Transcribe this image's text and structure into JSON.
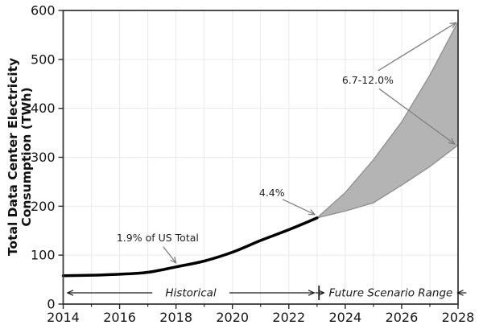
{
  "figure": {
    "ylabel_line1": "Total Data Center Electricity",
    "ylabel_line2": "Consumption (TWh)"
  },
  "chart_data": {
    "type": "line",
    "title": "",
    "xlabel": "",
    "ylabel": "Total Data Center Electricity Consumption (TWh)",
    "xlim": [
      2014,
      2028
    ],
    "ylim": [
      0,
      600
    ],
    "x_major_ticks": [
      2014,
      2016,
      2018,
      2020,
      2022,
      2024,
      2026,
      2028
    ],
    "x_minor_ticks": [
      2015,
      2017,
      2019,
      2021,
      2023,
      2025,
      2027
    ],
    "y_ticks": [
      0,
      100,
      200,
      300,
      400,
      500,
      600
    ],
    "grid": {
      "vertical_every_year": true,
      "horizontal_every": 100
    },
    "legend_position": "none",
    "series": [
      {
        "name": "Historical consumption",
        "type": "line",
        "color": "#000000",
        "line_width": 3.5,
        "x": [
          2014,
          2015,
          2016,
          2017,
          2018,
          2019,
          2020,
          2021,
          2022,
          2023
        ],
        "values": [
          58,
          59,
          61,
          65,
          76,
          88,
          106,
          130,
          152,
          176
        ]
      },
      {
        "name": "Future scenario range",
        "type": "band",
        "fill_color": "#b4b4b4",
        "edge_color": "#8e8e8e",
        "x": [
          2023,
          2024,
          2025,
          2026,
          2027,
          2028
        ],
        "lower": [
          176,
          190,
          207,
          243,
          281,
          325
        ],
        "upper": [
          176,
          228,
          295,
          372,
          468,
          577
        ]
      }
    ],
    "annotations": [
      {
        "label": "1.9% of US Total",
        "text_x": 2017.35,
        "text_y": 135,
        "arrows": [
          {
            "from_x": 2017.55,
            "from_y": 117,
            "to_x": 2018.0,
            "to_y": 84
          }
        ]
      },
      {
        "label": "4.4%",
        "text_x": 2021.4,
        "text_y": 227,
        "arrows": [
          {
            "from_x": 2021.78,
            "from_y": 214,
            "to_x": 2022.92,
            "to_y": 183
          }
        ]
      },
      {
        "label": "6.7-12.0%",
        "text_x": 2024.8,
        "text_y": 457,
        "arrows": [
          {
            "from_x": 2025.17,
            "from_y": 477,
            "to_x": 2027.93,
            "to_y": 575
          },
          {
            "from_x": 2025.2,
            "from_y": 440,
            "to_x": 2027.88,
            "to_y": 327
          }
        ]
      }
    ],
    "range_labels": [
      {
        "label": "Historical",
        "from": 2014.15,
        "to": 2022.9,
        "y": 23
      },
      {
        "label": "Future Scenario Range",
        "from": 2023.25,
        "to": 2027.98,
        "y": 23
      }
    ],
    "divider_x": 2023.07
  },
  "colors": {
    "background": "#ffffff",
    "spine": "#3a3a3a",
    "grid": "#e9e9e9",
    "tick": "#2a2a2a",
    "historical_line": "#000000",
    "band_fill": "#b4b4b4",
    "band_edge": "#8e8e8e",
    "annotation_arrow": "#808080",
    "range_arrow": "#1a1a1a"
  }
}
